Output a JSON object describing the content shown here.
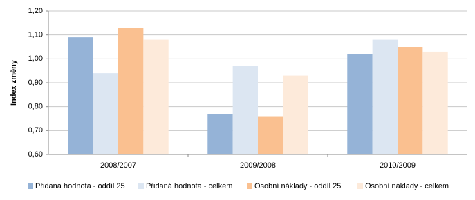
{
  "chart_data": {
    "type": "bar",
    "y_label": "Index změny",
    "categories": [
      "2008/2007",
      "2009/2008",
      "2010/2009"
    ],
    "series": [
      {
        "name": "Přidaná hodnota - oddíl 25",
        "color": "#95b3d7",
        "values": [
          1.09,
          0.77,
          1.02
        ]
      },
      {
        "name": "Přidaná hodnota - celkem",
        "color": "#dce6f2",
        "values": [
          0.94,
          0.97,
          1.08
        ]
      },
      {
        "name": "Osobní náklady - oddíl 25",
        "color": "#fac090",
        "values": [
          1.13,
          0.76,
          1.05
        ]
      },
      {
        "name": "Osobní náklady - celkem",
        "color": "#fdeada",
        "values": [
          1.08,
          0.93,
          1.03
        ]
      }
    ],
    "ylim": [
      0.6,
      1.2
    ],
    "yticks": [
      {
        "value": 0.6,
        "label": "0,60"
      },
      {
        "value": 0.7,
        "label": "0,70"
      },
      {
        "value": 0.8,
        "label": "0,80"
      },
      {
        "value": 0.9,
        "label": "0,90"
      },
      {
        "value": 1.0,
        "label": "1,00"
      },
      {
        "value": 1.1,
        "label": "1,10"
      },
      {
        "value": 1.2,
        "label": "1,20"
      }
    ],
    "grid": true,
    "legend": "bottom"
  }
}
